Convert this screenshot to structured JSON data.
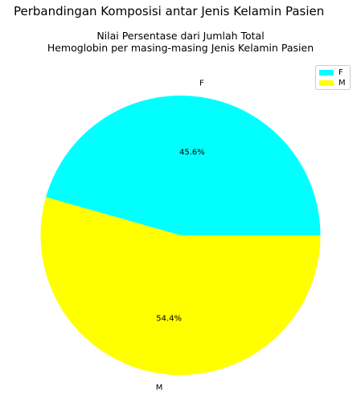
{
  "chart_data": {
    "type": "pie",
    "title": "Perbandingan Komposisi antar Jenis Kelamin Pasien",
    "subtitle": [
      "Nilai Persentase dari Jumlah Total",
      "Hemoglobin per masing-masing Jenis Kelamin Pasien"
    ],
    "labels": [
      "F",
      "M"
    ],
    "values": [
      45.6,
      54.4
    ],
    "value_labels": [
      "45.6%",
      "54.4%"
    ],
    "colors": [
      "#00ffff",
      "#ffff00"
    ],
    "start_angle_deg": 0,
    "direction": "counterclockwise",
    "legend": {
      "location": "top-right",
      "entries": [
        "F",
        "M"
      ]
    }
  }
}
